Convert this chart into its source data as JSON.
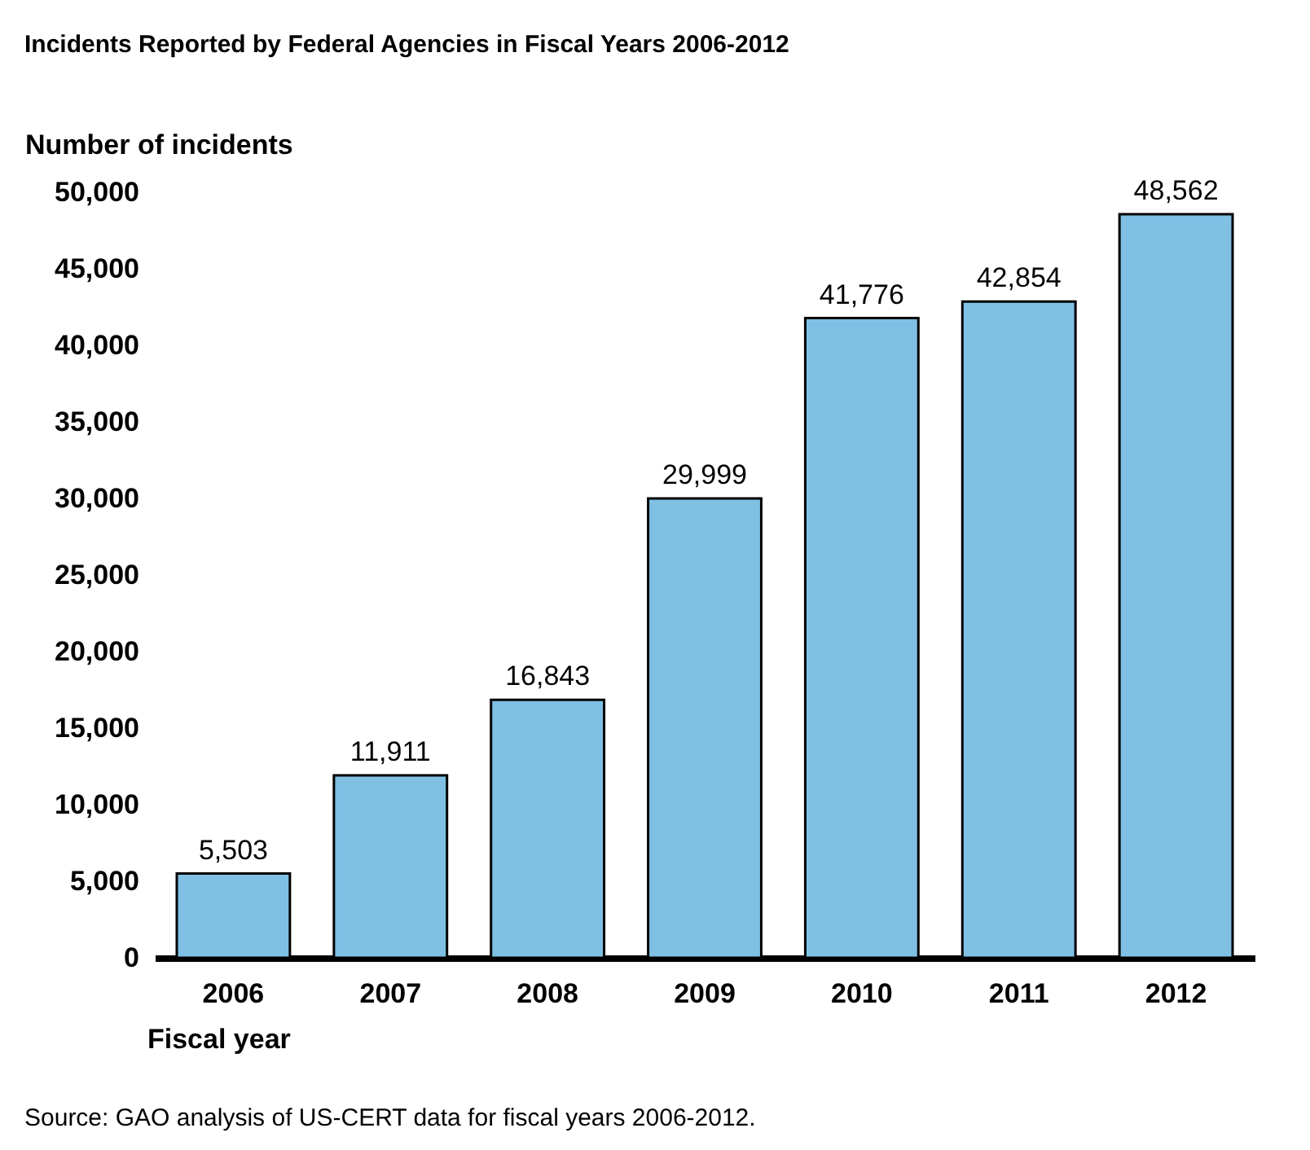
{
  "chart_data": {
    "type": "bar",
    "title": "Incidents Reported by Federal Agencies in Fiscal Years 2006-2012",
    "ylabel": "Number of incidents",
    "xlabel": "Fiscal year",
    "categories": [
      "2006",
      "2007",
      "2008",
      "2009",
      "2010",
      "2011",
      "2012"
    ],
    "values": [
      5503,
      11911,
      16843,
      29999,
      41776,
      42854,
      48562
    ],
    "color": "#7fc0e4",
    "ylim": [
      0,
      50000
    ],
    "yticks": [
      {
        "value": 0,
        "label": "0"
      },
      {
        "value": 5000,
        "label": "5,000"
      },
      {
        "value": 10000,
        "label": "10,000"
      },
      {
        "value": 15000,
        "label": "15,000"
      },
      {
        "value": 20000,
        "label": "20,000"
      },
      {
        "value": 25000,
        "label": "25,000"
      },
      {
        "value": 30000,
        "label": "30,000"
      },
      {
        "value": 35000,
        "label": "35,000"
      },
      {
        "value": 40000,
        "label": "40,000"
      },
      {
        "value": 45000,
        "label": "45,000"
      },
      {
        "value": 50000,
        "label": "50,000"
      }
    ],
    "value_labels": [
      "5,503",
      "11,911",
      "16,843",
      "29,999",
      "41,776",
      "42,854",
      "48,562"
    ],
    "grid": false,
    "annotations": [
      "Source:  GAO analysis of US-CERT data for fiscal years 2006-2012."
    ]
  }
}
